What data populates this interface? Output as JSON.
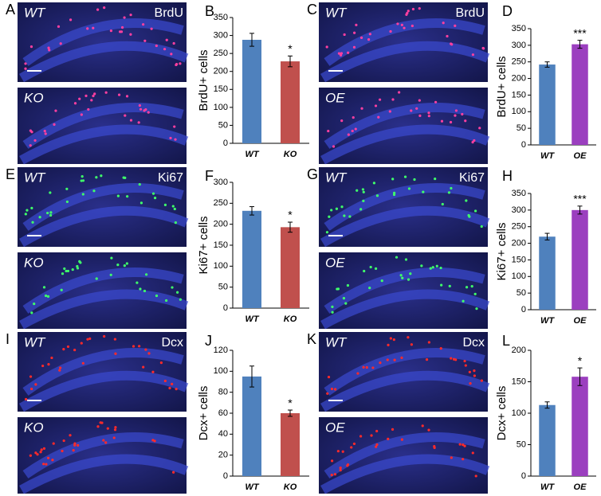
{
  "panels": [
    {
      "letter": "A",
      "stain": "BrdU",
      "labels": [
        "WT",
        "KO"
      ]
    },
    {
      "letter": "C",
      "stain": "BrdU",
      "labels": [
        "WT",
        "OE"
      ]
    },
    {
      "letter": "E",
      "stain": "Ki67",
      "labels": [
        "WT",
        "KO"
      ]
    },
    {
      "letter": "G",
      "stain": "Ki67",
      "labels": [
        "WT",
        "OE"
      ]
    },
    {
      "letter": "I",
      "stain": "Dcx",
      "labels": [
        "WT",
        "KO"
      ]
    },
    {
      "letter": "K",
      "stain": "Dcx",
      "labels": [
        "WT",
        "OE"
      ]
    }
  ],
  "chart_data": [
    {
      "type": "bar",
      "panel": "B",
      "ylabel": "BrdU+ cells",
      "categories": [
        "WT",
        "KO"
      ],
      "values": [
        288,
        228
      ],
      "errors": [
        18,
        15
      ],
      "colors": [
        "#4f81bd",
        "#c0504d"
      ],
      "annotation": "*",
      "ylim": [
        0,
        350
      ],
      "yticks": [
        0,
        50,
        100,
        150,
        200,
        250,
        300,
        350
      ]
    },
    {
      "type": "bar",
      "panel": "D",
      "ylabel": "BrdU+ cells",
      "categories": [
        "WT",
        "OE"
      ],
      "values": [
        242,
        303
      ],
      "errors": [
        8,
        12
      ],
      "colors": [
        "#4f81bd",
        "#9b3fbf"
      ],
      "annotation": "***",
      "ylim": [
        0,
        350
      ],
      "yticks": [
        0,
        50,
        100,
        150,
        200,
        250,
        300,
        350
      ]
    },
    {
      "type": "bar",
      "panel": "F",
      "ylabel": "Ki67+ cells",
      "categories": [
        "WT",
        "KO"
      ],
      "values": [
        232,
        193
      ],
      "errors": [
        10,
        12
      ],
      "colors": [
        "#4f81bd",
        "#c0504d"
      ],
      "annotation": "*",
      "ylim": [
        0,
        300
      ],
      "yticks": [
        0,
        50,
        100,
        150,
        200,
        250,
        300
      ]
    },
    {
      "type": "bar",
      "panel": "H",
      "ylabel": "Ki67+ cells",
      "categories": [
        "WT",
        "OE"
      ],
      "values": [
        220,
        300
      ],
      "errors": [
        10,
        12
      ],
      "colors": [
        "#4f81bd",
        "#9b3fbf"
      ],
      "annotation": "***",
      "ylim": [
        0,
        350
      ],
      "yticks": [
        0,
        50,
        100,
        150,
        200,
        250,
        300,
        350
      ]
    },
    {
      "type": "bar",
      "panel": "J",
      "ylabel": "Dcx+ cells",
      "categories": [
        "WT",
        "KO"
      ],
      "values": [
        95,
        60
      ],
      "errors": [
        10,
        3
      ],
      "colors": [
        "#4f81bd",
        "#c0504d"
      ],
      "annotation": "*",
      "ylim": [
        0,
        120
      ],
      "yticks": [
        0,
        20,
        40,
        60,
        80,
        100,
        120
      ]
    },
    {
      "type": "bar",
      "panel": "L",
      "ylabel": "Dcx+ cells",
      "categories": [
        "WT",
        "OE"
      ],
      "values": [
        113,
        158
      ],
      "errors": [
        5,
        14
      ],
      "colors": [
        "#4f81bd",
        "#9b3fbf"
      ],
      "annotation": "*",
      "ylim": [
        0,
        200
      ],
      "yticks": [
        0,
        50,
        100,
        150,
        200
      ]
    }
  ]
}
